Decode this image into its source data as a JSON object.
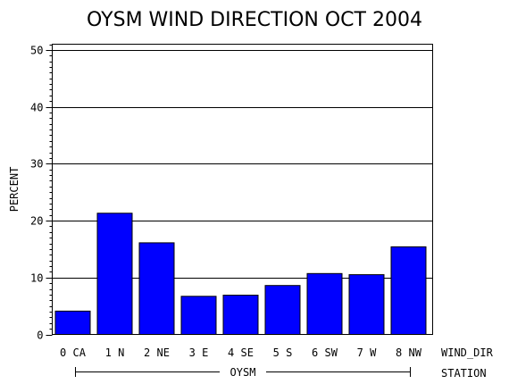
{
  "chart_data": {
    "type": "bar",
    "title": "OYSM WIND DIRECTION OCT 2004",
    "ylabel": "PERCENT",
    "xlabel": "WIND_DIR",
    "group_axis_label": "STATION",
    "group_label": "OYSM",
    "categories": [
      "0 CA",
      "1 N",
      "2 NE",
      "3 E",
      "4 SE",
      "5 S",
      "6 SW",
      "7 W",
      "8 NW"
    ],
    "values": [
      4.1,
      21.3,
      16.1,
      6.7,
      6.9,
      8.6,
      10.7,
      10.5,
      15.4
    ],
    "ylim": [
      0,
      51
    ],
    "yticks": [
      "0",
      "10",
      "20",
      "30",
      "40",
      "50"
    ],
    "grid": true,
    "bar_color": "#0000ff"
  }
}
